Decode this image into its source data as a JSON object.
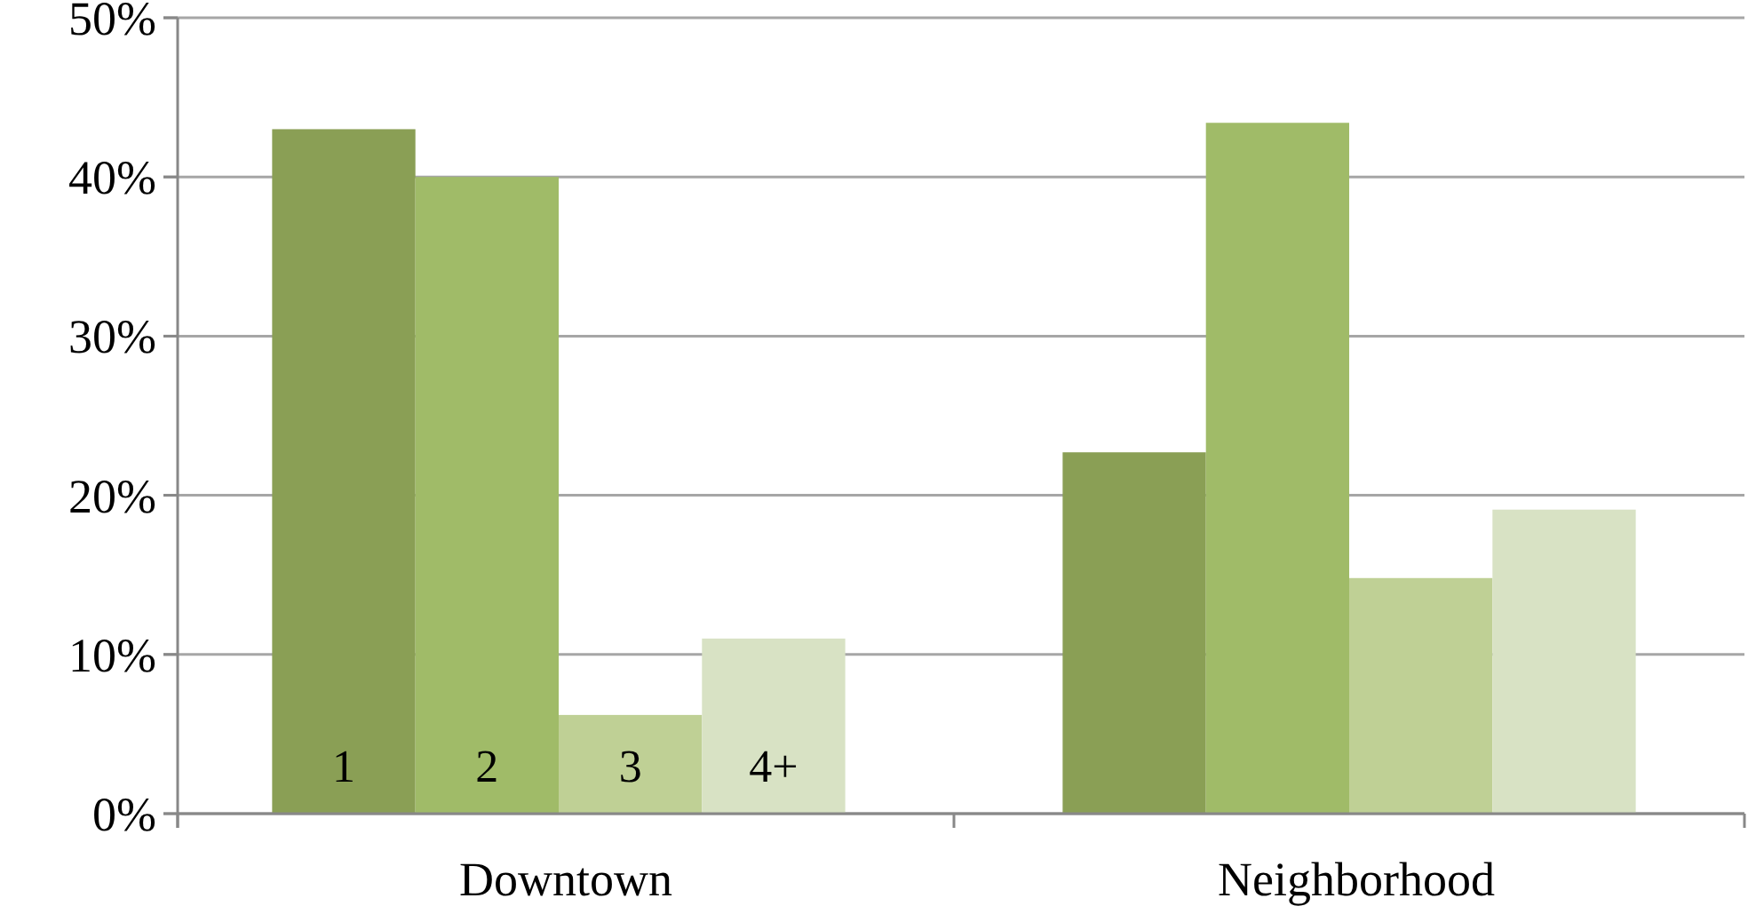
{
  "chart_data": {
    "type": "bar",
    "categories": [
      "Downtown",
      "Neighborhood"
    ],
    "series": [
      {
        "name": "1",
        "color": "#8a9f55",
        "values": [
          43,
          22.7
        ]
      },
      {
        "name": "2",
        "color": "#a0bb68",
        "values": [
          40,
          43.4
        ]
      },
      {
        "name": "3",
        "color": "#bfd095",
        "values": [
          6.2,
          14.8
        ]
      },
      {
        "name": "4+",
        "color": "#d8e2c4",
        "values": [
          11,
          19.1
        ]
      }
    ],
    "ylim": [
      0,
      50
    ],
    "yticks": [
      {
        "value": 0,
        "label": "0%"
      },
      {
        "value": 10,
        "label": "10%"
      },
      {
        "value": 20,
        "label": "20%"
      },
      {
        "value": 30,
        "label": "30%"
      },
      {
        "value": 40,
        "label": "40%"
      },
      {
        "value": 50,
        "label": "50%"
      }
    ],
    "grid": "y",
    "legend": false
  }
}
